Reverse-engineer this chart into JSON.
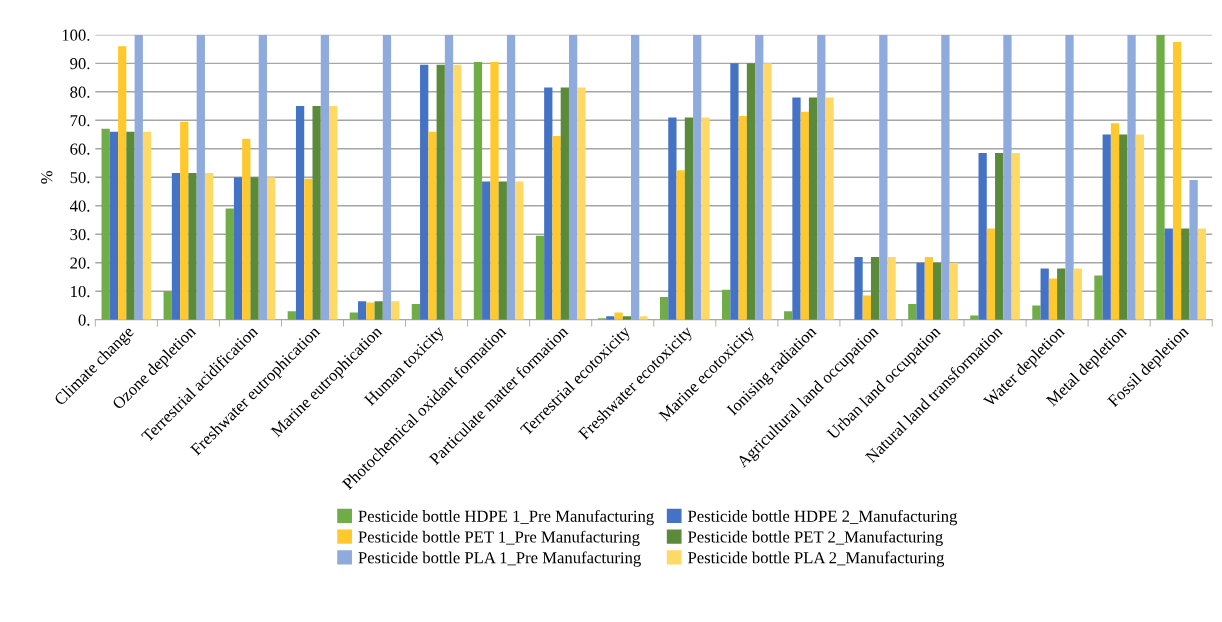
{
  "chart_data": {
    "type": "bar",
    "ylabel": "%",
    "categories": [
      "Climate change",
      "Ozone depletion",
      "Terrestrial acidification",
      "Freshwater eutrophication",
      "Marine eutrophication",
      "Human toxicity",
      "Photochemical oxidant formation",
      "Particulate matter formation",
      "Terrestrial ecotoxicity",
      "Freshwater ecotoxicity",
      "Marine ecotoxicity",
      "Ionising radiation",
      "Agricultural land occupation",
      "Urban land occupation",
      "Natural land transformation",
      "Water depletion",
      "Metal depletion",
      "Fossil depletion"
    ],
    "series": [
      {
        "name": "Pesticide bottle HDPE 1_Pre Manufacturing",
        "color": "#70ad47",
        "values": [
          67,
          10,
          39,
          3,
          2.5,
          5.5,
          90.5,
          29.5,
          0.5,
          8,
          10.5,
          3,
          0,
          5.5,
          1.5,
          5,
          15.5,
          100
        ]
      },
      {
        "name": "Pesticide bottle HDPE 2_Manufacturing",
        "color": "#4472c4",
        "values": [
          66,
          51.5,
          50,
          75,
          6.5,
          89.5,
          48.5,
          81.5,
          1.2,
          71,
          90,
          78,
          22,
          20,
          58.5,
          18,
          65,
          32
        ]
      },
      {
        "name": "Pesticide bottle PET 1_Pre Manufacturing",
        "color": "#ffc92e",
        "values": [
          96,
          69.5,
          63.5,
          49.5,
          6,
          66,
          90.5,
          64.5,
          2.5,
          52.5,
          71.5,
          73,
          8.5,
          22,
          32,
          14.5,
          69,
          97.5
        ]
      },
      {
        "name": "Pesticide bottle PET 2_Manufacturing",
        "color": "#5b8a3a",
        "values": [
          66,
          51.5,
          50,
          75,
          6.5,
          89.5,
          48.5,
          81.5,
          1.2,
          71,
          90,
          78,
          22,
          20,
          58.5,
          18,
          65,
          32
        ]
      },
      {
        "name": "Pesticide bottle PLA 1_Pre Manufacturing",
        "color": "#8faadc",
        "values": [
          100,
          100,
          100,
          100,
          100,
          100,
          100,
          100,
          100,
          100,
          100,
          100,
          100,
          100,
          100,
          100,
          100,
          49
        ]
      },
      {
        "name": "Pesticide bottle PLA 2_Manufacturing",
        "color": "#ffd966",
        "values": [
          66,
          51.5,
          50,
          75,
          6.5,
          89.5,
          48.5,
          81.5,
          1.2,
          71,
          90,
          78,
          22,
          20,
          58.5,
          18,
          65,
          32
        ]
      }
    ],
    "ylim": [
      0,
      100
    ],
    "yticks": [
      {
        "value": 0,
        "label": "0."
      },
      {
        "value": 10,
        "label": "10."
      },
      {
        "value": 20,
        "label": "20."
      },
      {
        "value": 30,
        "label": "30."
      },
      {
        "value": 40,
        "label": "40."
      },
      {
        "value": 50,
        "label": "50."
      },
      {
        "value": 60,
        "label": "60."
      },
      {
        "value": 70,
        "label": "70."
      },
      {
        "value": 80,
        "label": "80."
      },
      {
        "value": 90,
        "label": "90."
      },
      {
        "value": 100,
        "label": "100."
      }
    ],
    "grid": "y",
    "legend": "bottom"
  }
}
